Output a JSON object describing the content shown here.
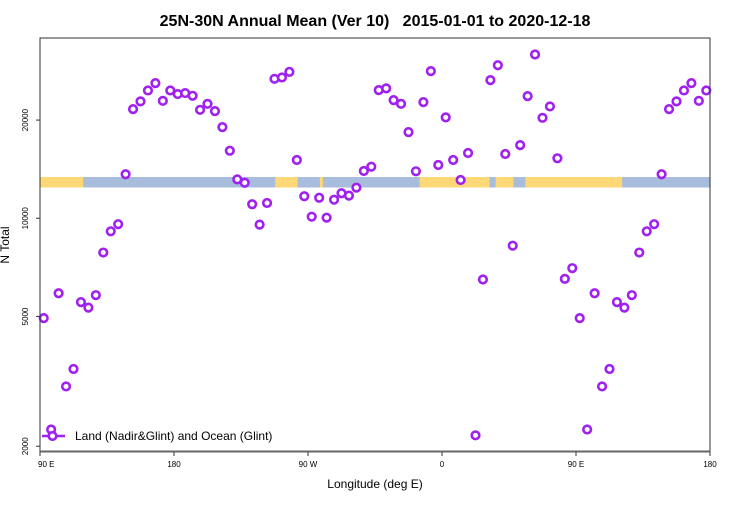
{
  "chart_data": {
    "type": "scatter",
    "title": "25N-30N Annual Mean (Ver 10)   2015-01-01 to 2020-12-18",
    "xlabel": "Longitude (deg E)",
    "ylabel": "N Total",
    "x_ticks": [
      {
        "lon": 90,
        "label": "90 E"
      },
      {
        "lon": 180,
        "label": "180"
      },
      {
        "lon": -90,
        "label": "90 W"
      },
      {
        "lon": 0,
        "label": "0"
      },
      {
        "lon": 90,
        "label": "90 E",
        "wrapped": true
      },
      {
        "lon": 180,
        "label": "180",
        "wrapped": true
      }
    ],
    "x_range_deg_east": [
      "90 E",
      "180 (wrapped once)"
    ],
    "y_scale": "log",
    "ylim": [
      1920,
      35700
    ],
    "y_ticks": [
      {
        "value": 2000,
        "label": "2000"
      },
      {
        "value": 5000,
        "label": "5000"
      },
      {
        "value": 10000,
        "label": "10000"
      },
      {
        "value": 20000,
        "label": "20000"
      }
    ],
    "grid": false,
    "legend": {
      "placement": "bottom-left",
      "label": "Land (Nadir&Glint) and Ocean (Glint)"
    },
    "marker": "open-circle",
    "series": [
      {
        "name": "Land (Nadir&Glint) and Ocean (Glint)",
        "color": "#a020f0",
        "lon": [
          92.5,
          97.5,
          102.5,
          107.5,
          112.5,
          117.5,
          122.5,
          127.5,
          132.5,
          137.5,
          142.5,
          147.5,
          152.5,
          157.5,
          162.5,
          167.5,
          172.5,
          177.5,
          -177.5,
          -172.5,
          -167.5,
          -162.5,
          -157.5,
          -152.5,
          -147.5,
          -142.5,
          -137.5,
          -132.5,
          -127.5,
          -122.5,
          -117.5,
          -112.5,
          -107.5,
          -102.5,
          -97.5,
          -92.5,
          -87.5,
          -82.5,
          -77.5,
          -72.5,
          -67.5,
          -62.5,
          -57.5,
          -52.5,
          -47.5,
          -42.5,
          -37.5,
          -32.5,
          -27.5,
          -22.5,
          -17.5,
          -12.5,
          -7.5,
          -2.5,
          2.5,
          7.5,
          12.5,
          17.5,
          22.5,
          27.5,
          32.5,
          37.5,
          42.5,
          47.5,
          52.5,
          57.5,
          62.5,
          67.5,
          72.5,
          77.5,
          82.5,
          87.5
        ],
        "values": [
          4940,
          2250,
          5890,
          3050,
          3450,
          5530,
          5320,
          5810,
          7850,
          9120,
          9590,
          13640,
          21610,
          22820,
          24650,
          25960,
          22910,
          24650,
          24030,
          24200,
          23740,
          21500,
          22430,
          21310,
          19030,
          16110,
          13160,
          12850,
          11040,
          9560,
          11140,
          26760,
          27020,
          28110,
          15090,
          11680,
          10110,
          11560,
          10040,
          11400,
          11930,
          11730,
          12410,
          13960,
          14390,
          24710,
          25010,
          23030,
          22430,
          18370,
          13930,
          22700,
          28250,
          14560,
          20380,
          15090,
          13100,
          15850,
          2160,
          6490,
          26510,
          29450,
          15740,
          8240,
          16760,
          23690,
          31780,
          20320,
          22020,
          15270,
          6520,
          7030
        ]
      }
    ],
    "surface_strip": {
      "land_color": "#fed777",
      "ocean_color": "#a7bddb",
      "land_lon_ranges": [
        [
          90,
          119
        ],
        [
          -112,
          -97
        ],
        [
          -82,
          -80
        ],
        [
          -15,
          32
        ],
        [
          36,
          48
        ],
        [
          56,
          121
        ]
      ]
    }
  }
}
